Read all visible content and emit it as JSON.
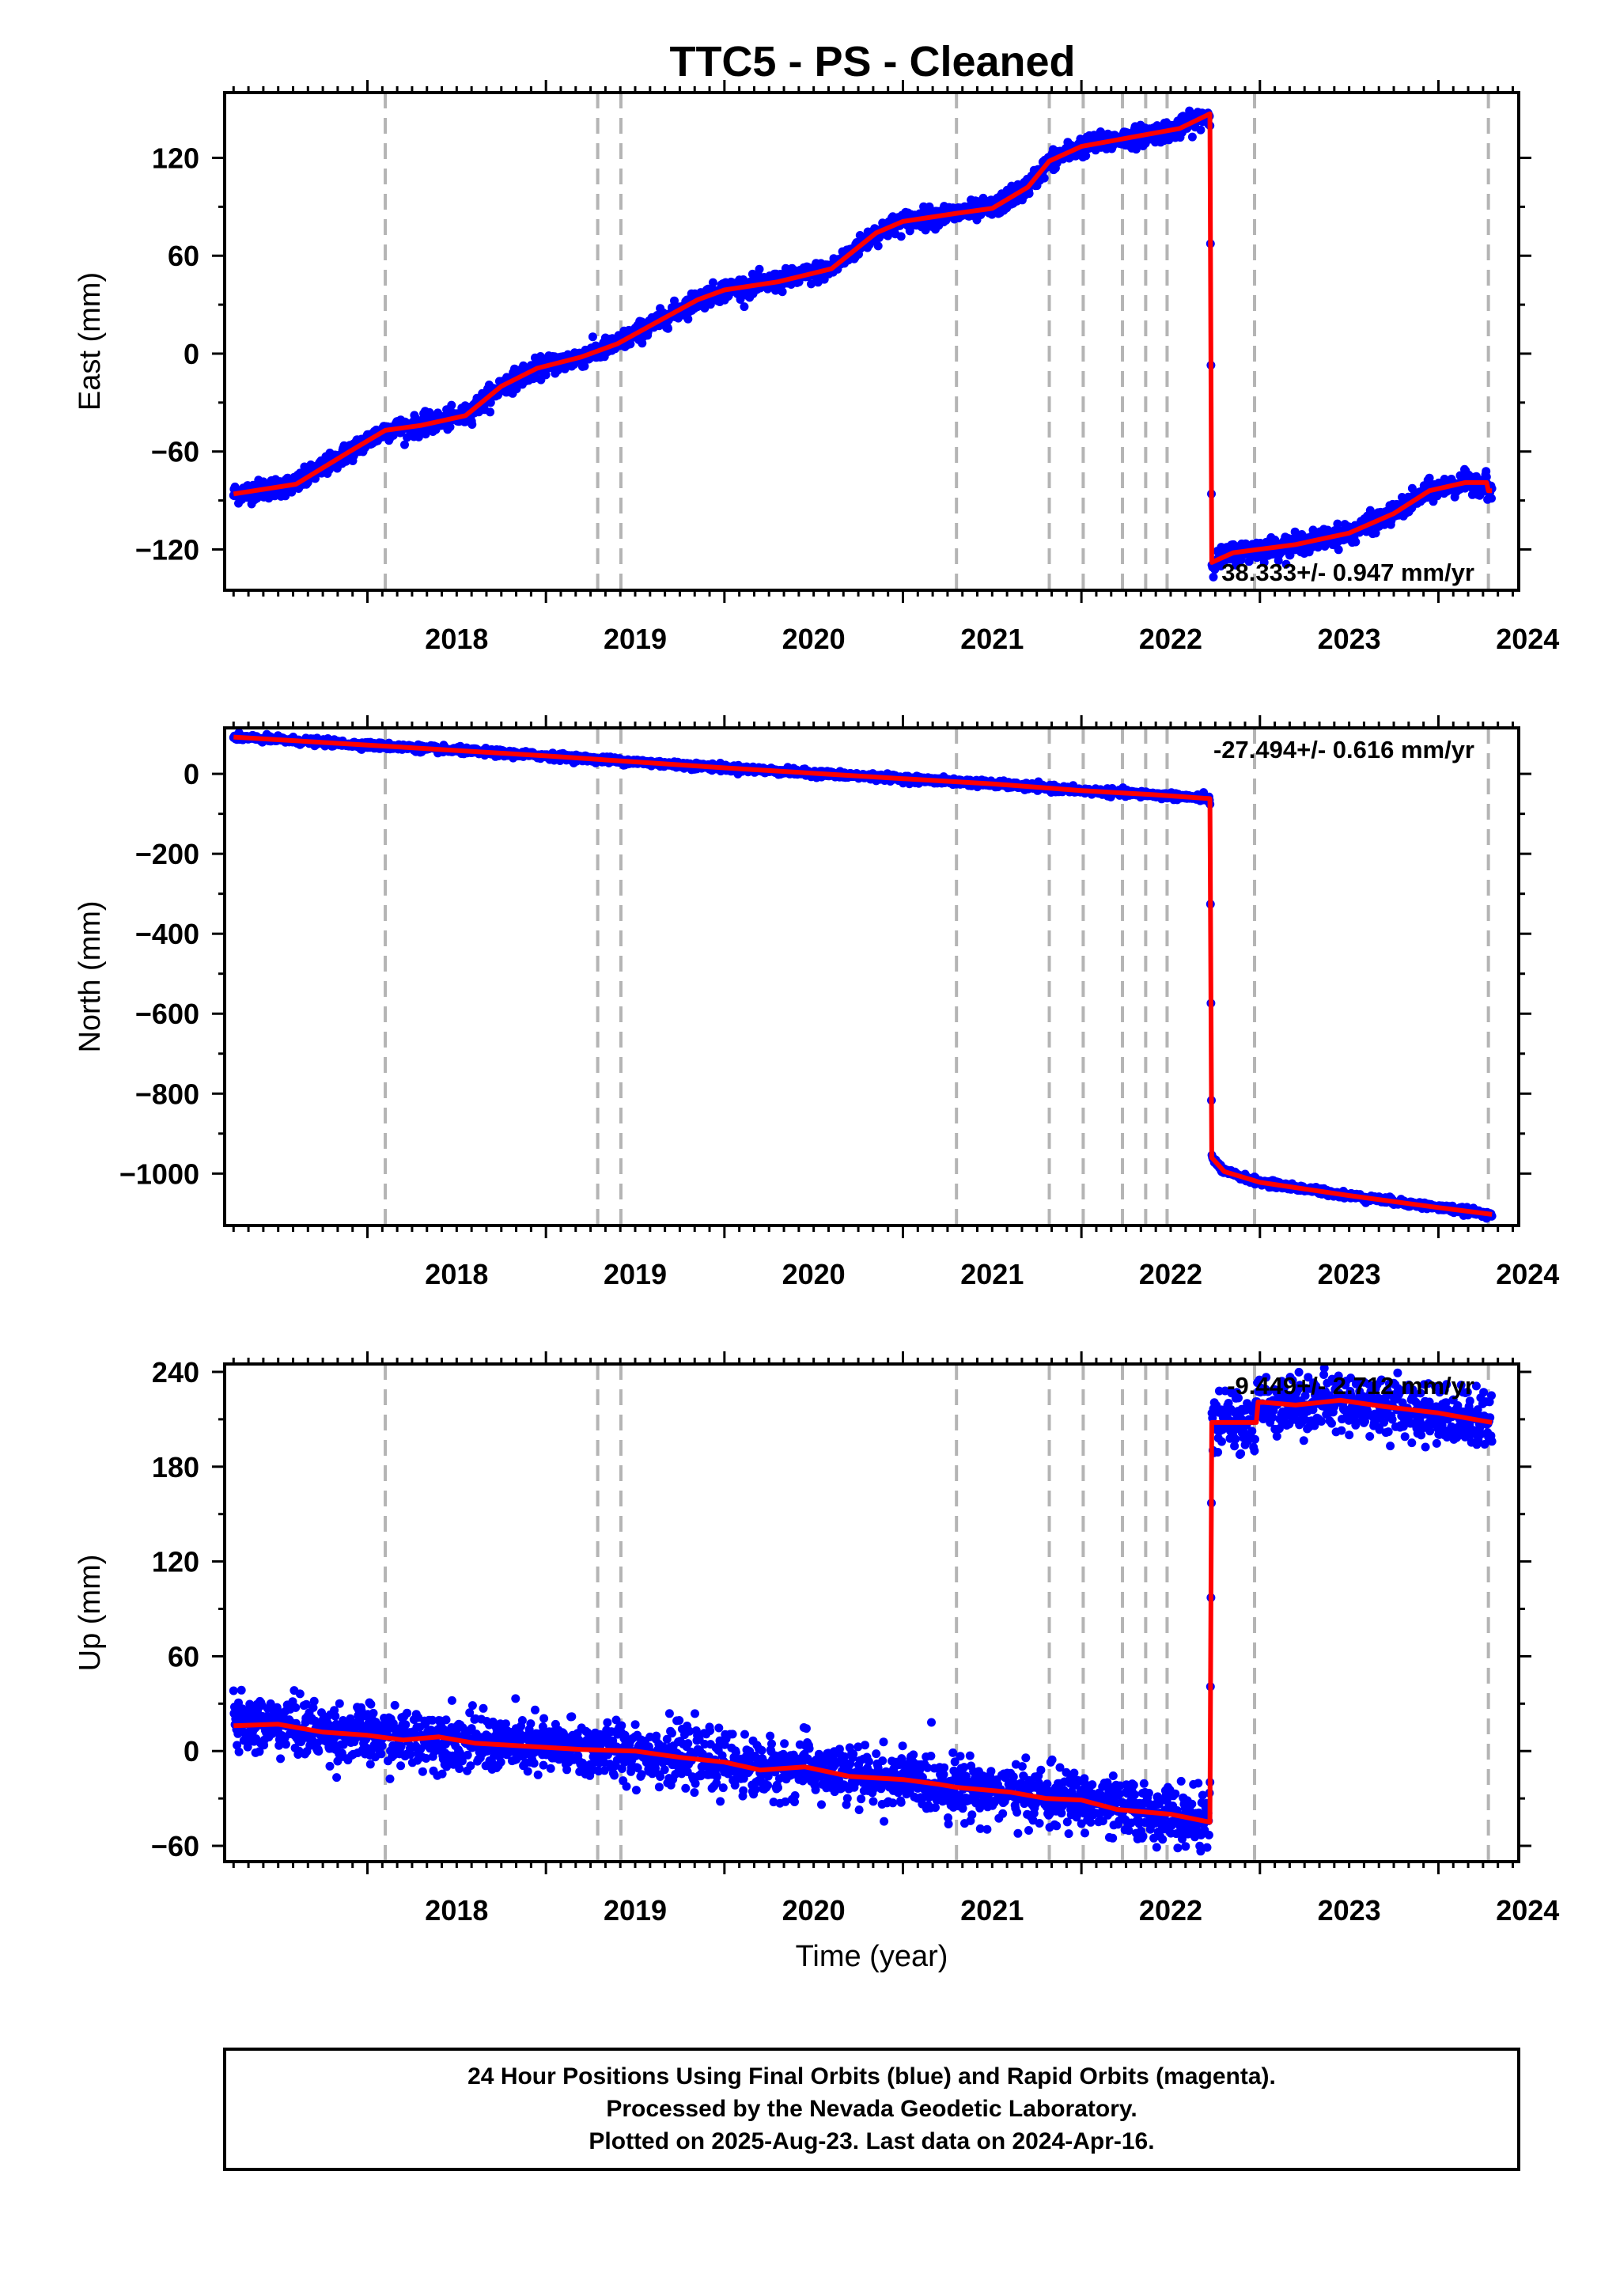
{
  "title": "TTC5  - PS - Cleaned",
  "colors": {
    "data": "#0000ff",
    "model": "#ff0000",
    "events": "#b4b4b4",
    "frame": "#000000"
  },
  "chart_data": [
    {
      "type": "scatter",
      "component": "east",
      "ylabel": "East (mm)",
      "xlabel": "",
      "xlim": [
        2017.2,
        2024.45
      ],
      "ylim": [
        -145,
        160
      ],
      "yticks": [
        -120,
        -60,
        0,
        60,
        120
      ],
      "xticks": [
        2018,
        2019,
        2020,
        2021,
        2022,
        2023,
        2024
      ],
      "rate_label": "38.333+/- 0.947 mm/yr",
      "rate_position": "bottom-right",
      "trend_points": [
        [
          2017.25,
          -86
        ],
        [
          2017.6,
          -80
        ],
        [
          2017.9,
          -60
        ],
        [
          2018.1,
          -47
        ],
        [
          2018.3,
          -44
        ],
        [
          2018.55,
          -38
        ],
        [
          2018.75,
          -20
        ],
        [
          2018.95,
          -9
        ],
        [
          2019.2,
          -2
        ],
        [
          2019.4,
          6
        ],
        [
          2019.6,
          18
        ],
        [
          2019.85,
          33
        ],
        [
          2020.0,
          39
        ],
        [
          2020.3,
          44
        ],
        [
          2020.6,
          52
        ],
        [
          2020.85,
          74
        ],
        [
          2021.0,
          81
        ],
        [
          2021.3,
          86
        ],
        [
          2021.5,
          89
        ],
        [
          2021.7,
          102
        ],
        [
          2021.82,
          118
        ],
        [
          2022.0,
          127
        ],
        [
          2022.3,
          133
        ],
        [
          2022.55,
          138
        ],
        [
          2022.72,
          147
        ],
        [
          2022.73,
          -128
        ],
        [
          2022.85,
          -122
        ],
        [
          2023.2,
          -117
        ],
        [
          2023.5,
          -110
        ],
        [
          2023.75,
          -98
        ],
        [
          2023.95,
          -84
        ],
        [
          2024.15,
          -79
        ],
        [
          2024.27,
          -79
        ],
        [
          2024.28,
          -84
        ],
        [
          2024.3,
          -84
        ]
      ],
      "data_noise_mm": 3
    },
    {
      "type": "scatter",
      "component": "north",
      "ylabel": "North (mm)",
      "xlabel": "",
      "xlim": [
        2017.2,
        2024.45
      ],
      "ylim": [
        -1130,
        115
      ],
      "yticks": [
        -1000,
        -800,
        -600,
        -400,
        -200,
        0
      ],
      "xticks": [
        2018,
        2019,
        2020,
        2021,
        2022,
        2023,
        2024
      ],
      "rate_label": "-27.494+/- 0.616 mm/yr",
      "rate_position": "top-right",
      "trend_points": [
        [
          2017.25,
          92
        ],
        [
          2018.0,
          72
        ],
        [
          2019.0,
          45
        ],
        [
          2020.0,
          15
        ],
        [
          2021.0,
          -12
        ],
        [
          2021.5,
          -25
        ],
        [
          2022.0,
          -42
        ],
        [
          2022.4,
          -52
        ],
        [
          2022.72,
          -62
        ],
        [
          2022.73,
          -960
        ],
        [
          2022.8,
          -995
        ],
        [
          2023.0,
          -1022
        ],
        [
          2023.5,
          -1055
        ],
        [
          2024.0,
          -1085
        ],
        [
          2024.3,
          -1102
        ]
      ],
      "data_noise_mm": 4
    },
    {
      "type": "scatter",
      "component": "up",
      "ylabel": "Up (mm)",
      "xlabel": "Time (year)",
      "xlim": [
        2017.2,
        2024.45
      ],
      "ylim": [
        -70,
        245
      ],
      "yticks": [
        -60,
        0,
        60,
        120,
        180,
        240
      ],
      "xticks": [
        2018,
        2019,
        2020,
        2021,
        2022,
        2023,
        2024
      ],
      "rate_label": "-9.449+/- 2.712 mm/yr",
      "rate_position": "top-right",
      "trend_points": [
        [
          2017.25,
          16
        ],
        [
          2017.5,
          17
        ],
        [
          2017.75,
          12
        ],
        [
          2018.0,
          10
        ],
        [
          2018.2,
          7
        ],
        [
          2018.4,
          9
        ],
        [
          2018.6,
          5
        ],
        [
          2018.9,
          3
        ],
        [
          2019.2,
          1
        ],
        [
          2019.5,
          0
        ],
        [
          2019.75,
          -4
        ],
        [
          2020.0,
          -7
        ],
        [
          2020.2,
          -12
        ],
        [
          2020.45,
          -10
        ],
        [
          2020.7,
          -16
        ],
        [
          2021.0,
          -18
        ],
        [
          2021.2,
          -21
        ],
        [
          2021.3,
          -23
        ],
        [
          2021.6,
          -26
        ],
        [
          2021.8,
          -30
        ],
        [
          2022.0,
          -31
        ],
        [
          2022.2,
          -37
        ],
        [
          2022.5,
          -40
        ],
        [
          2022.72,
          -45
        ],
        [
          2022.73,
          208
        ],
        [
          2022.98,
          208
        ],
        [
          2022.99,
          221
        ],
        [
          2023.2,
          219
        ],
        [
          2023.45,
          222
        ],
        [
          2023.7,
          218
        ],
        [
          2024.0,
          214
        ],
        [
          2024.2,
          210
        ],
        [
          2024.3,
          208
        ]
      ],
      "data_noise_mm": 9
    }
  ],
  "event_lines": [
    2018.1,
    2019.29,
    2019.42,
    2021.3,
    2021.82,
    2022.01,
    2022.23,
    2022.36,
    2022.48,
    2022.97,
    2024.28
  ],
  "footer": {
    "line1": "24 Hour Positions Using Final Orbits (blue) and Rapid Orbits (magenta).",
    "line2": "Processed by the Nevada Geodetic Laboratory.",
    "line3": "Plotted on 2025-Aug-23. Last data on 2024-Apr-16."
  }
}
